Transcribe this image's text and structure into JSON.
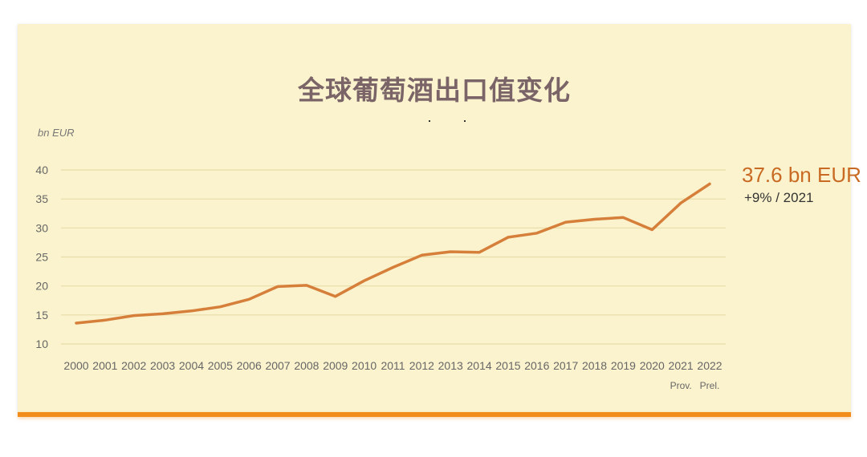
{
  "chart_data": {
    "type": "line",
    "title": "全球葡萄酒出口值变化",
    "ylabel": "bn EUR",
    "xlabel": "",
    "ylim": [
      10,
      40
    ],
    "yticks": [
      10,
      15,
      20,
      25,
      30,
      35,
      40
    ],
    "grid": true,
    "categories": [
      "2000",
      "2001",
      "2002",
      "2003",
      "2004",
      "2005",
      "2006",
      "2007",
      "2008",
      "2009",
      "2010",
      "2011",
      "2012",
      "2013",
      "2014",
      "2015",
      "2016",
      "2017",
      "2018",
      "2019",
      "2020",
      "2021",
      "2022"
    ],
    "category_sublabels": {
      "2021": "Prov.",
      "2022": "Prel."
    },
    "series": [
      {
        "values": [
          13.6,
          14.1,
          14.9,
          15.2,
          15.7,
          16.4,
          17.7,
          19.9,
          20.1,
          18.2,
          20.9,
          23.2,
          25.3,
          25.9,
          25.8,
          28.4,
          29.1,
          31.0,
          31.5,
          31.8,
          29.7,
          34.3,
          37.6
        ],
        "color": "#d57f3a"
      }
    ],
    "annotations": {
      "value_text": "37.6 bn EUR",
      "change_text": "+9% / 2021"
    }
  },
  "colors": {
    "line": "#d57f3a",
    "grid": "#e7dca8",
    "card": "#fbf3cd",
    "accent_bar": "#f28c1a"
  }
}
